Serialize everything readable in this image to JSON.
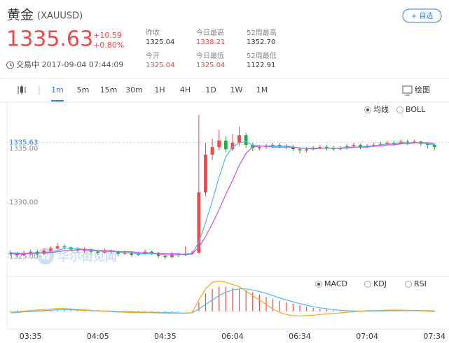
{
  "header": {
    "name": "黄金",
    "symbol": "(XAUUSD)",
    "change": "+10.59",
    "change_pct": "+0.80%",
    "status": "交易中 2017-09-04 07:44:09",
    "watchlist_button": "+ 自选"
  },
  "stats": [
    {
      "label": "昨收",
      "value": "1325.04",
      "color": "#333333"
    },
    {
      "label": "今日最高",
      "value": "1338.21",
      "color": "#f04848"
    },
    {
      "label": "52周最高",
      "value": "1352.70",
      "color": "#333333"
    },
    {
      "label": "今开",
      "value": "1325.04",
      "color": "#f04848"
    },
    {
      "label": "今日最低",
      "value": "1325.04",
      "color": "#f04848"
    },
    {
      "label": "52周最低",
      "value": "1122.91",
      "color": "#333333"
    }
  ],
  "toolbar": {
    "intervals": [
      "1m",
      "5m",
      "15m",
      "30m",
      "1H",
      "4H",
      "1D",
      "1W",
      "1M"
    ],
    "selected": 0,
    "draw": "绘图"
  },
  "overlays": {
    "options": [
      "均线",
      "BOLL"
    ],
    "selected": 0
  },
  "oscillators": {
    "options": [
      "MACD",
      "KDJ",
      "RSI"
    ],
    "selected": 0
  },
  "watermark": "华尔街见闻",
  "chart_data": {
    "type": "candlestick",
    "last_price": 1335.63,
    "categories": [
      null,
      null,
      null,
      "03:35",
      null,
      null,
      null,
      null,
      null,
      null,
      null,
      null,
      null,
      "04:05",
      null,
      null,
      null,
      null,
      null,
      null,
      null,
      null,
      null,
      "04:35",
      null,
      null,
      null,
      null,
      null,
      null,
      null,
      null,
      null,
      "06:04",
      null,
      null,
      null,
      null,
      null,
      null,
      null,
      null,
      null,
      "06:34",
      null,
      null,
      null,
      null,
      null,
      null,
      null,
      null,
      null,
      "07:04",
      null,
      null,
      null,
      null,
      null,
      null,
      null,
      null,
      null,
      "07:34"
    ],
    "open": [
      1325.4,
      1325.3,
      1325.2,
      1325.4,
      1325.5,
      1325.3,
      1325.6,
      1325.8,
      1326.0,
      1325.9,
      1325.7,
      1325.6,
      1325.7,
      1325.5,
      1325.4,
      1325.6,
      1325.5,
      1325.3,
      1325.4,
      1325.2,
      1325.3,
      1325.5,
      1325.4,
      1325.1,
      1325.0,
      1325.3,
      1325.2,
      1325.3,
      1325.4,
      1331.0,
      1334.5,
      1335.2,
      1335.8,
      1335.0,
      1335.6,
      1336.3,
      1335.4,
      1335.1,
      1335.2,
      1335.3,
      1335.4,
      1335.3,
      1335.2,
      1335.0,
      1334.9,
      1335.0,
      1335.1,
      1335.2,
      1335.1,
      1335.0,
      1335.1,
      1335.3,
      1335.4,
      1335.2,
      1335.3,
      1335.4,
      1335.5,
      1335.6,
      1335.5,
      1335.7,
      1335.6,
      1335.7,
      1335.5,
      1335.4
    ],
    "high": [
      1325.6,
      1325.5,
      1325.6,
      1325.7,
      1325.7,
      1325.8,
      1326.0,
      1326.3,
      1326.2,
      1326.0,
      1325.9,
      1325.9,
      1325.8,
      1325.7,
      1325.8,
      1325.7,
      1325.6,
      1325.6,
      1325.5,
      1325.5,
      1325.7,
      1325.6,
      1325.5,
      1325.3,
      1325.5,
      1325.4,
      1326.0,
      1325.6,
      1338.2,
      1335.6,
      1336.0,
      1336.8,
      1336.2,
      1336.4,
      1337.1,
      1336.5,
      1335.6,
      1335.4,
      1335.5,
      1335.6,
      1335.6,
      1335.5,
      1335.4,
      1335.2,
      1335.2,
      1335.3,
      1335.4,
      1335.4,
      1335.3,
      1335.3,
      1335.5,
      1335.6,
      1335.5,
      1335.5,
      1335.6,
      1335.7,
      1335.8,
      1335.8,
      1335.9,
      1335.9,
      1335.9,
      1335.8,
      1335.6,
      1335.5
    ],
    "low": [
      1325.1,
      1325.0,
      1325.1,
      1325.3,
      1325.2,
      1325.2,
      1325.5,
      1325.7,
      1325.7,
      1325.5,
      1325.4,
      1325.4,
      1325.3,
      1325.2,
      1325.3,
      1325.3,
      1325.1,
      1325.2,
      1325.05,
      1325.1,
      1325.2,
      1325.2,
      1324.9,
      1324.8,
      1324.9,
      1325.0,
      1325.1,
      1325.2,
      1325.3,
      1330.6,
      1334.0,
      1334.9,
      1334.7,
      1334.8,
      1335.3,
      1335.1,
      1334.8,
      1334.9,
      1335.0,
      1335.1,
      1335.1,
      1335.0,
      1334.8,
      1334.6,
      1334.7,
      1334.9,
      1335.0,
      1334.9,
      1334.8,
      1334.9,
      1335.0,
      1335.2,
      1335.0,
      1335.1,
      1335.2,
      1335.3,
      1335.4,
      1335.3,
      1335.5,
      1335.4,
      1335.5,
      1335.3,
      1335.1,
      1334.9
    ],
    "close": [
      1325.3,
      1325.2,
      1325.4,
      1325.5,
      1325.3,
      1325.6,
      1325.8,
      1326.0,
      1325.9,
      1325.7,
      1325.6,
      1325.7,
      1325.5,
      1325.4,
      1325.6,
      1325.5,
      1325.3,
      1325.4,
      1325.2,
      1325.3,
      1325.5,
      1325.4,
      1325.1,
      1325.0,
      1325.3,
      1325.2,
      1325.3,
      1325.4,
      1331.0,
      1334.5,
      1335.2,
      1335.8,
      1335.0,
      1335.6,
      1336.3,
      1335.4,
      1335.1,
      1335.2,
      1335.3,
      1335.4,
      1335.3,
      1335.2,
      1335.0,
      1334.9,
      1335.0,
      1335.1,
      1335.2,
      1335.1,
      1335.0,
      1335.1,
      1335.3,
      1335.4,
      1335.2,
      1335.3,
      1335.4,
      1335.5,
      1335.6,
      1335.5,
      1335.7,
      1335.6,
      1335.7,
      1335.5,
      1335.4,
      1335.2
    ],
    "up_color": "#f04848",
    "down_color": "#27a844",
    "ma_lines": [
      {
        "color": "#4fb8f0",
        "values": [
          1325.4,
          1325.4,
          1325.3,
          1325.4,
          1325.4,
          1325.4,
          1325.5,
          1325.6,
          1325.8,
          1325.8,
          1325.8,
          1325.7,
          1325.6,
          1325.6,
          1325.5,
          1325.5,
          1325.5,
          1325.4,
          1325.4,
          1325.3,
          1325.3,
          1325.3,
          1325.3,
          1325.2,
          1325.2,
          1325.2,
          1325.3,
          1325.3,
          1326.4,
          1328.2,
          1330.2,
          1332.4,
          1334.3,
          1335.2,
          1335.6,
          1335.7,
          1335.4,
          1335.3,
          1335.3,
          1335.3,
          1335.3,
          1335.3,
          1335.2,
          1335.1,
          1335.1,
          1335.0,
          1335.1,
          1335.1,
          1335.1,
          1335.1,
          1335.2,
          1335.2,
          1335.2,
          1335.3,
          1335.3,
          1335.4,
          1335.5,
          1335.5,
          1335.6,
          1335.6,
          1335.6,
          1335.6,
          1335.5,
          1335.4
        ]
      },
      {
        "color": "#c454d6",
        "values": [
          1325.3,
          1325.3,
          1325.3,
          1325.3,
          1325.4,
          1325.4,
          1325.4,
          1325.5,
          1325.6,
          1325.6,
          1325.7,
          1325.7,
          1325.7,
          1325.6,
          1325.6,
          1325.6,
          1325.5,
          1325.5,
          1325.5,
          1325.4,
          1325.4,
          1325.4,
          1325.3,
          1325.3,
          1325.3,
          1325.3,
          1325.2,
          1325.3,
          1325.9,
          1326.9,
          1328.1,
          1329.4,
          1330.8,
          1332.1,
          1333.5,
          1334.6,
          1335.2,
          1335.3,
          1335.3,
          1335.2,
          1335.2,
          1335.2,
          1335.2,
          1335.1,
          1335.1,
          1335.1,
          1335.1,
          1335.1,
          1335.1,
          1335.1,
          1335.1,
          1335.2,
          1335.2,
          1335.2,
          1335.3,
          1335.3,
          1335.4,
          1335.4,
          1335.5,
          1335.5,
          1335.6,
          1335.6,
          1335.6,
          1335.5
        ]
      }
    ],
    "ylim": [
      1323.2,
      1339.1
    ],
    "yticks": [
      {
        "value": 1325,
        "label": "1325.00"
      },
      {
        "value": 1330,
        "label": "1330.00"
      },
      {
        "value": 1335,
        "label": "1335.00"
      }
    ],
    "macd": {
      "ylim": [
        -0.8,
        1.4
      ],
      "hist": [
        0.02,
        0.03,
        0.03,
        0.04,
        0.04,
        0.05,
        0.06,
        0.06,
        0.05,
        0.04,
        0.03,
        0.02,
        0.01,
        0,
        -0.01,
        -0.02,
        -0.02,
        -0.03,
        -0.03,
        -0.03,
        -0.02,
        -0.02,
        -0.02,
        -0.03,
        -0.03,
        -0.02,
        -0.01,
        0.0,
        0.4,
        0.8,
        1.0,
        1.1,
        1.1,
        1.05,
        1.0,
        0.95,
        0.85,
        0.75,
        0.65,
        0.55,
        0.47,
        0.4,
        0.33,
        0.26,
        0.2,
        0.15,
        0.11,
        0.08,
        0.05,
        0.03,
        0.02,
        0.02,
        0.03,
        0.03,
        0.03,
        0.04,
        0.04,
        0.04,
        0.04,
        0.03,
        0.03,
        0.02,
        0.0,
        -0.02
      ],
      "dif": {
        "color": "#f5a623",
        "values": [
          -0.05,
          -0.03,
          0,
          0.03,
          0.05,
          0.07,
          0.1,
          0.12,
          0.12,
          0.1,
          0.08,
          0.06,
          0.04,
          0.02,
          0,
          -0.02,
          -0.04,
          -0.05,
          -0.06,
          -0.07,
          -0.07,
          -0.07,
          -0.08,
          -0.09,
          -0.1,
          -0.1,
          -0.09,
          -0.07,
          0.5,
          1.0,
          1.3,
          1.35,
          1.3,
          1.2,
          1.1,
          0.9,
          0.7,
          0.5,
          0.3,
          0.1,
          -0.05,
          -0.15,
          -0.2,
          -0.22,
          -0.2,
          -0.18,
          -0.15,
          -0.12,
          -0.1,
          -0.08,
          -0.05,
          -0.03,
          0.0,
          0.02,
          0.03,
          0.04,
          0.05,
          0.05,
          0.05,
          0.04,
          0.03,
          0.02,
          0.0,
          -0.02
        ]
      },
      "dea": {
        "color": "#4fb8f0",
        "values": [
          -0.07,
          -0.06,
          -0.03,
          -0.01,
          0.01,
          0.02,
          0.04,
          0.06,
          0.07,
          0.06,
          0.05,
          0.04,
          0.03,
          0.02,
          0.01,
          0,
          -0.02,
          -0.02,
          -0.03,
          -0.04,
          -0.05,
          -0.05,
          -0.06,
          -0.06,
          -0.07,
          -0.08,
          -0.08,
          -0.07,
          0.1,
          0.3,
          0.5,
          0.7,
          0.85,
          0.95,
          1.0,
          1.0,
          0.95,
          0.88,
          0.8,
          0.7,
          0.6,
          0.5,
          0.42,
          0.34,
          0.27,
          0.2,
          0.15,
          0.11,
          0.07,
          0.04,
          0.02,
          0.01,
          0.0,
          0.0,
          0.01,
          0.01,
          0.02,
          0.02,
          0.03,
          0.03,
          0.03,
          0.03,
          0.02,
          0.01
        ]
      }
    }
  }
}
